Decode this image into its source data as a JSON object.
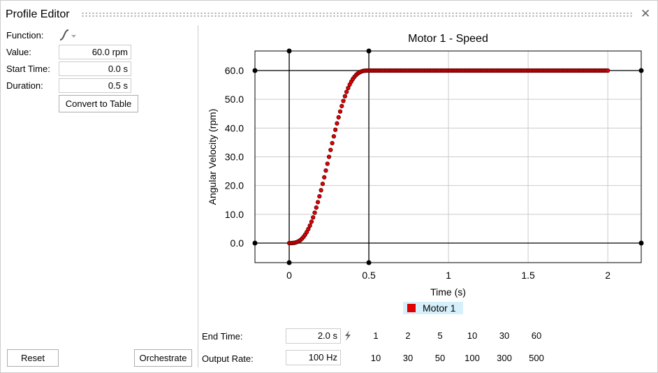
{
  "window": {
    "title": "Profile Editor",
    "close_icon": "close-icon"
  },
  "form": {
    "function_label": "Function:",
    "function_icon": "s-curve-icon",
    "value_label": "Value:",
    "value": "60.0 rpm",
    "start_label": "Start Time:",
    "start": "0.0 s",
    "duration_label": "Duration:",
    "duration": "0.5 s",
    "convert_label": "Convert to Table",
    "reset_label": "Reset",
    "orchestrate_label": "Orchestrate"
  },
  "bottom": {
    "end_label": "End Time:",
    "end_value": "2.0 s",
    "lightning_icon": "lightning-icon",
    "end_presets": [
      "1",
      "2",
      "5",
      "10",
      "30",
      "60"
    ],
    "rate_label": "Output Rate:",
    "rate_value": "100 Hz",
    "rate_presets": [
      "10",
      "30",
      "50",
      "100",
      "300",
      "500"
    ]
  },
  "chart_data": {
    "type": "scatter",
    "title": "Motor 1 - Speed",
    "xlabel": "Time (s)",
    "ylabel": "Angular Velocity (rpm)",
    "xlim": [
      -0.215,
      2.21
    ],
    "ylim": [
      -6.8,
      66.8
    ],
    "xticks": [
      "0",
      "0.5",
      "1",
      "1.5",
      "2"
    ],
    "xtick_values": [
      0,
      0.5,
      1,
      1.5,
      2
    ],
    "yticks": [
      "0.0",
      "10.0",
      "20.0",
      "30.0",
      "40.0",
      "50.0",
      "60.0"
    ],
    "ytick_values": [
      0,
      10,
      20,
      30,
      40,
      50,
      60
    ],
    "grid": true,
    "marker_lines": {
      "x": [
        0,
        0.5
      ],
      "y": [
        0,
        60
      ]
    },
    "legend": {
      "position": "bottom",
      "entries": [
        "Motor 1"
      ]
    },
    "series": [
      {
        "name": "Motor 1",
        "color": "#e00000",
        "x_start": 0,
        "x_step": 0.01,
        "values": [
          0,
          0,
          0.03,
          0.08,
          0.2,
          0.39,
          0.66,
          1.04,
          1.54,
          2.16,
          2.92,
          3.82,
          4.87,
          6.07,
          7.42,
          8.92,
          10.56,
          12.34,
          14.24,
          16.26,
          18.39,
          20.6,
          22.88,
          25.23,
          27.6,
          30,
          32.4,
          34.77,
          37.12,
          39.4,
          41.61,
          43.74,
          45.76,
          47.66,
          49.44,
          51.08,
          52.58,
          53.93,
          55.13,
          56.18,
          57.08,
          57.84,
          58.46,
          58.96,
          59.34,
          59.61,
          59.8,
          59.92,
          59.97,
          60,
          60,
          60,
          60,
          60,
          60,
          60,
          60,
          60,
          60,
          60,
          60,
          60,
          60,
          60,
          60,
          60,
          60,
          60,
          60,
          60,
          60,
          60,
          60,
          60,
          60,
          60,
          60,
          60,
          60,
          60,
          60,
          60,
          60,
          60,
          60,
          60,
          60,
          60,
          60,
          60,
          60,
          60,
          60,
          60,
          60,
          60,
          60,
          60,
          60,
          60,
          60,
          60,
          60,
          60,
          60,
          60,
          60,
          60,
          60,
          60,
          60,
          60,
          60,
          60,
          60,
          60,
          60,
          60,
          60,
          60,
          60,
          60,
          60,
          60,
          60,
          60,
          60,
          60,
          60,
          60,
          60,
          60,
          60,
          60,
          60,
          60,
          60,
          60,
          60,
          60,
          60,
          60,
          60,
          60,
          60,
          60,
          60,
          60,
          60,
          60,
          60,
          60,
          60,
          60,
          60,
          60,
          60,
          60,
          60,
          60,
          60,
          60,
          60,
          60,
          60,
          60,
          60,
          60,
          60,
          60,
          60,
          60,
          60,
          60,
          60,
          60,
          60,
          60,
          60,
          60,
          60,
          60,
          60,
          60,
          60,
          60,
          60,
          60,
          60,
          60,
          60,
          60,
          60,
          60,
          60,
          60,
          60,
          60,
          60,
          60,
          60
        ]
      }
    ]
  }
}
